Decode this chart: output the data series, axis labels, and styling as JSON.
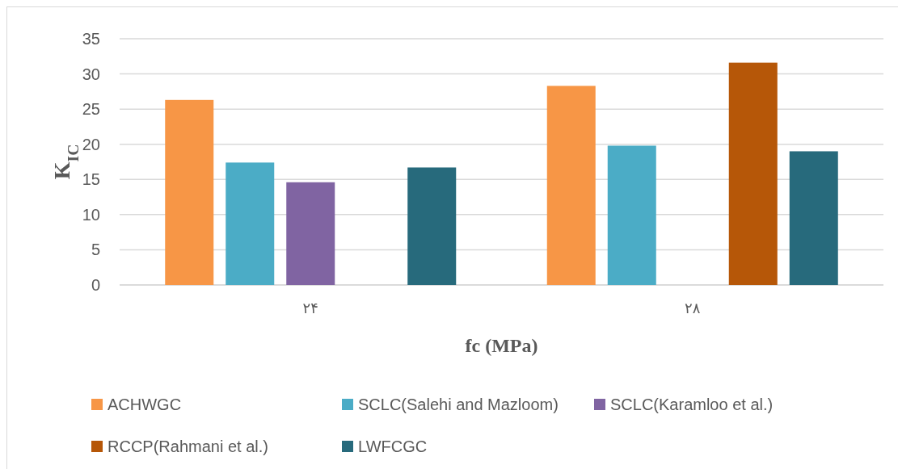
{
  "chart_data": {
    "type": "bar",
    "xlabel": "fc (MPa)",
    "ylabel": "K$_{IC}$",
    "categories": [
      "۲۴",
      "۲۸"
    ],
    "series": [
      {
        "name": "ACHWGC",
        "color": "#f79646",
        "values": [
          26.3,
          28.3
        ]
      },
      {
        "name": "SCLC(Salehi and Mazloom)",
        "color": "#4bacc6",
        "values": [
          17.4,
          19.8
        ]
      },
      {
        "name": "SCLC(Karamloo et al.)",
        "color": "#8064a2",
        "values": [
          14.6,
          null
        ]
      },
      {
        "name": "RCCP(Rahmani et al.)",
        "color": "#b65708",
        "values": [
          null,
          31.6
        ]
      },
      {
        "name": "LWFCGC",
        "color": "#276a7c",
        "values": [
          16.7,
          19.0
        ]
      }
    ],
    "ylim": [
      0,
      35
    ],
    "yticks": [
      0,
      5,
      10,
      15,
      20,
      25,
      30,
      35
    ],
    "grid": "y",
    "legend": "bottom"
  }
}
